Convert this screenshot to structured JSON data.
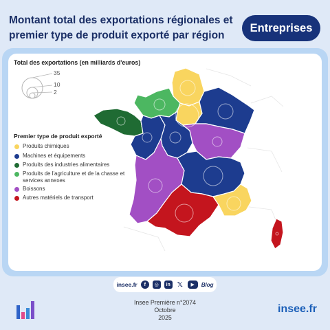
{
  "header": {
    "title": "Montant total des exportations régionales et premier type de produit exporté par région",
    "badge": "Entreprises"
  },
  "bubble_legend": {
    "title": "Total des exportations (en milliards d'euros)",
    "values": [
      "35",
      "10",
      "2"
    ]
  },
  "legend": {
    "title": "Premier type de produit exporté",
    "items": [
      {
        "label": "Produits chimiques",
        "color": "#f9d55f"
      },
      {
        "label": "Machines et équipements",
        "color": "#1d3c8f"
      },
      {
        "label": "Produits des industries alimentaires",
        "color": "#1f6b33"
      },
      {
        "label": "Produits de l'agriculture et de la chasse et services annexes",
        "color": "#4cb761"
      },
      {
        "label": "Boissons",
        "color": "#a24fc4"
      },
      {
        "label": "Autres matériels de transport",
        "color": "#c4151e"
      }
    ]
  },
  "regions": [
    {
      "name": "Hauts-de-France",
      "category": "Produits chimiques",
      "color": "#f9d55f"
    },
    {
      "name": "Normandie",
      "category": "Produits de l'agriculture et de la chasse et services annexes",
      "color": "#4cb761"
    },
    {
      "name": "Île-de-France",
      "category": "Produits chimiques",
      "color": "#f9d55f"
    },
    {
      "name": "Grand Est",
      "category": "Machines et équipements",
      "color": "#1d3c8f"
    },
    {
      "name": "Bretagne",
      "category": "Produits des industries alimentaires",
      "color": "#1f6b33"
    },
    {
      "name": "Pays de la Loire",
      "category": "Machines et équipements",
      "color": "#1d3c8f"
    },
    {
      "name": "Centre-Val de Loire",
      "category": "Machines et équipements",
      "color": "#1d3c8f"
    },
    {
      "name": "Bourgogne-Franche-Comté",
      "category": "Boissons",
      "color": "#a24fc4"
    },
    {
      "name": "Nouvelle-Aquitaine",
      "category": "Boissons",
      "color": "#a24fc4"
    },
    {
      "name": "Auvergne-Rhône-Alpes",
      "category": "Machines et équipements",
      "color": "#1d3c8f"
    },
    {
      "name": "Occitanie",
      "category": "Autres matériels de transport",
      "color": "#c4151e"
    },
    {
      "name": "Provence-Alpes-Côte d'Azur",
      "category": "Produits chimiques",
      "color": "#f9d55f"
    },
    {
      "name": "Corse",
      "category": "Autres matériels de transport",
      "color": "#c4151e"
    }
  ],
  "footer": {
    "social_site": "insee.fr",
    "social_icons": [
      "facebook-icon",
      "instagram-icon",
      "linkedin-icon",
      "x-icon",
      "youtube-icon"
    ],
    "blog": "Blog",
    "publication_line1": "Insee Première n°2074",
    "publication_line2": "Octobre",
    "publication_line3": "2025",
    "site": "insee.fr"
  }
}
